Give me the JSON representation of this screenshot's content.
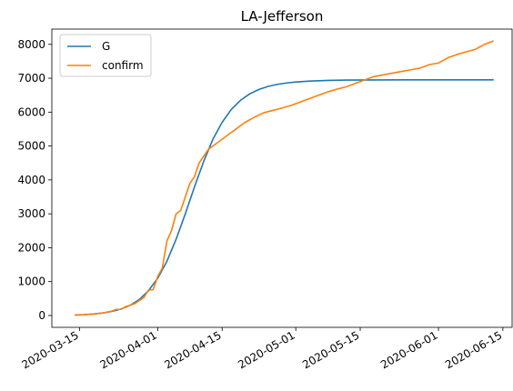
{
  "chart_data": {
    "type": "line",
    "title": "LA-Jefferson",
    "xlabel": "",
    "ylabel": "",
    "x_type": "date",
    "xlim": [
      "2020-03-09",
      "2020-06-17"
    ],
    "ylim": [
      -350,
      8450
    ],
    "xticks": [
      "2020-03-15",
      "2020-04-01",
      "2020-04-15",
      "2020-05-01",
      "2020-05-15",
      "2020-06-01",
      "2020-06-15"
    ],
    "yticks": [
      0,
      1000,
      2000,
      3000,
      4000,
      5000,
      6000,
      7000,
      8000
    ],
    "grid": false,
    "legend_position": "upper-left",
    "series": [
      {
        "name": "G",
        "color": "#1f77b4",
        "points": [
          [
            "2020-03-14",
            15
          ],
          [
            "2020-03-16",
            25
          ],
          [
            "2020-03-18",
            45
          ],
          [
            "2020-03-20",
            75
          ],
          [
            "2020-03-22",
            120
          ],
          [
            "2020-03-24",
            190
          ],
          [
            "2020-03-26",
            300
          ],
          [
            "2020-03-28",
            470
          ],
          [
            "2020-03-30",
            730
          ],
          [
            "2020-04-01",
            1100
          ],
          [
            "2020-04-03",
            1600
          ],
          [
            "2020-04-05",
            2250
          ],
          [
            "2020-04-07",
            3000
          ],
          [
            "2020-04-09",
            3800
          ],
          [
            "2020-04-11",
            4550
          ],
          [
            "2020-04-13",
            5200
          ],
          [
            "2020-04-15",
            5700
          ],
          [
            "2020-04-17",
            6080
          ],
          [
            "2020-04-19",
            6350
          ],
          [
            "2020-04-21",
            6540
          ],
          [
            "2020-04-23",
            6670
          ],
          [
            "2020-04-25",
            6760
          ],
          [
            "2020-04-27",
            6820
          ],
          [
            "2020-04-29",
            6860
          ],
          [
            "2020-05-01",
            6890
          ],
          [
            "2020-05-04",
            6915
          ],
          [
            "2020-05-08",
            6935
          ],
          [
            "2020-05-12",
            6945
          ],
          [
            "2020-05-18",
            6950
          ],
          [
            "2020-05-25",
            6952
          ],
          [
            "2020-06-01",
            6953
          ],
          [
            "2020-06-08",
            6953
          ],
          [
            "2020-06-13",
            6953
          ]
        ]
      },
      {
        "name": "confirm",
        "color": "#ff7f0e",
        "points": [
          [
            "2020-03-14",
            10
          ],
          [
            "2020-03-16",
            20
          ],
          [
            "2020-03-18",
            40
          ],
          [
            "2020-03-20",
            70
          ],
          [
            "2020-03-22",
            130
          ],
          [
            "2020-03-23",
            180
          ],
          [
            "2020-03-24",
            180
          ],
          [
            "2020-03-25",
            260
          ],
          [
            "2020-03-26",
            300
          ],
          [
            "2020-03-27",
            350
          ],
          [
            "2020-03-28",
            440
          ],
          [
            "2020-03-29",
            530
          ],
          [
            "2020-03-30",
            750
          ],
          [
            "2020-03-31",
            760
          ],
          [
            "2020-04-01",
            1150
          ],
          [
            "2020-04-02",
            1400
          ],
          [
            "2020-04-03",
            2200
          ],
          [
            "2020-04-04",
            2500
          ],
          [
            "2020-04-05",
            3000
          ],
          [
            "2020-04-06",
            3100
          ],
          [
            "2020-04-07",
            3500
          ],
          [
            "2020-04-08",
            3900
          ],
          [
            "2020-04-09",
            4100
          ],
          [
            "2020-04-10",
            4500
          ],
          [
            "2020-04-11",
            4700
          ],
          [
            "2020-04-12",
            4900
          ],
          [
            "2020-04-14",
            5100
          ],
          [
            "2020-04-16",
            5300
          ],
          [
            "2020-04-18",
            5500
          ],
          [
            "2020-04-20",
            5700
          ],
          [
            "2020-04-22",
            5850
          ],
          [
            "2020-04-24",
            5980
          ],
          [
            "2020-04-26",
            6050
          ],
          [
            "2020-04-28",
            6120
          ],
          [
            "2020-04-30",
            6200
          ],
          [
            "2020-05-02",
            6300
          ],
          [
            "2020-05-04",
            6400
          ],
          [
            "2020-05-06",
            6500
          ],
          [
            "2020-05-08",
            6600
          ],
          [
            "2020-05-10",
            6680
          ],
          [
            "2020-05-12",
            6750
          ],
          [
            "2020-05-14",
            6850
          ],
          [
            "2020-05-16",
            6950
          ],
          [
            "2020-05-18",
            7050
          ],
          [
            "2020-05-20",
            7100
          ],
          [
            "2020-05-22",
            7150
          ],
          [
            "2020-05-24",
            7200
          ],
          [
            "2020-05-26",
            7250
          ],
          [
            "2020-05-28",
            7300
          ],
          [
            "2020-05-30",
            7400
          ],
          [
            "2020-06-01",
            7450
          ],
          [
            "2020-06-03",
            7600
          ],
          [
            "2020-06-05",
            7700
          ],
          [
            "2020-06-07",
            7780
          ],
          [
            "2020-06-09",
            7850
          ],
          [
            "2020-06-11",
            8000
          ],
          [
            "2020-06-13",
            8100
          ]
        ]
      }
    ]
  }
}
